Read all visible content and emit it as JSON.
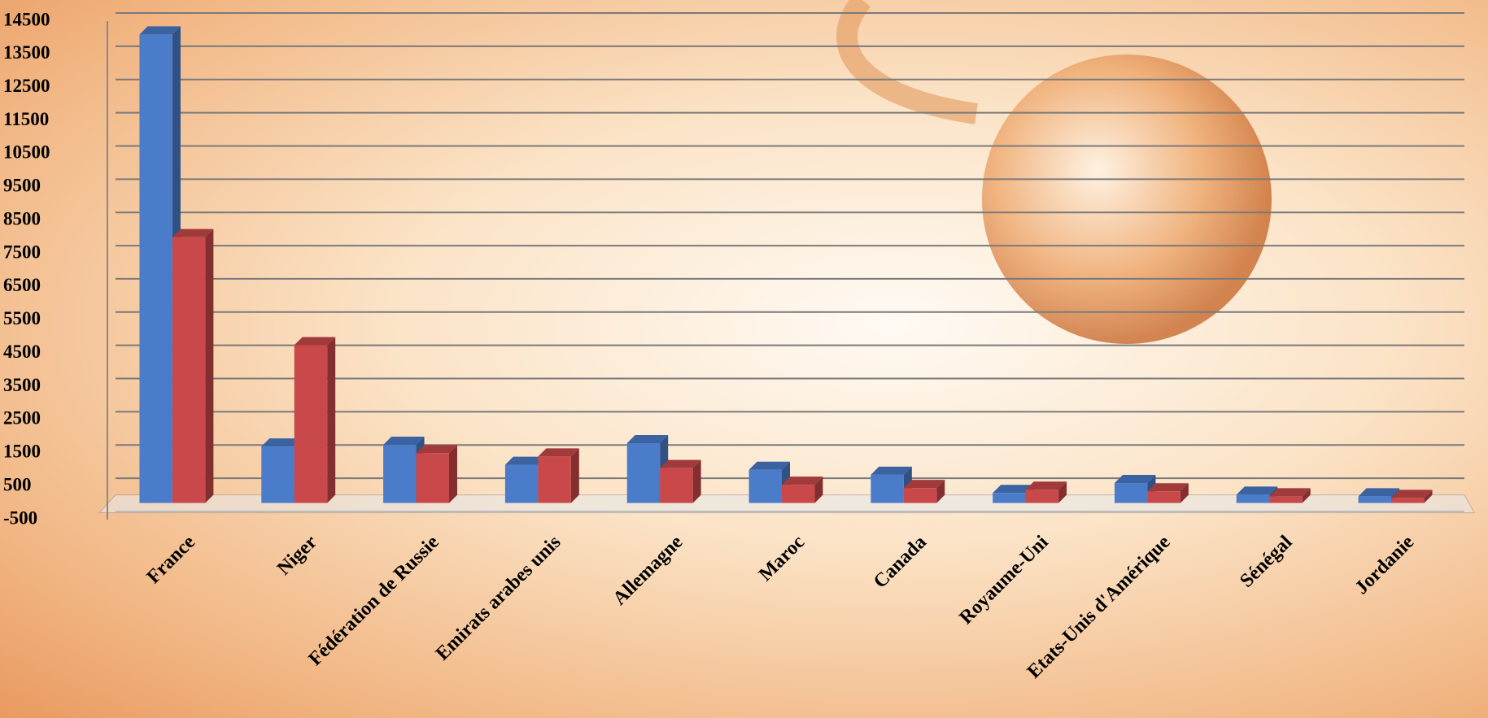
{
  "chart_data": {
    "type": "bar",
    "categories": [
      "France",
      "Niger",
      "Fédération de Russie",
      "Emirats arabes unis",
      "Allemagne",
      "Maroc",
      "Canada",
      "Royaume-Uni",
      "Etats-Unis d'Amérique",
      "Sénégal",
      "Jordanie"
    ],
    "series": [
      {
        "color": "#4a7cc9",
        "values": [
          14100,
          1700,
          1750,
          1150,
          1800,
          1000,
          850,
          300,
          600,
          250,
          200
        ]
      },
      {
        "color": "#c9494a",
        "values": [
          8000,
          4750,
          1500,
          1400,
          1050,
          550,
          450,
          400,
          350,
          200,
          150
        ]
      }
    ],
    "ylim": [
      -500,
      14500
    ],
    "yticks": [
      -500,
      500,
      1500,
      2500,
      3500,
      4500,
      5500,
      6500,
      7500,
      8500,
      9500,
      10500,
      11500,
      12500,
      13500,
      14500
    ],
    "grid": true
  }
}
